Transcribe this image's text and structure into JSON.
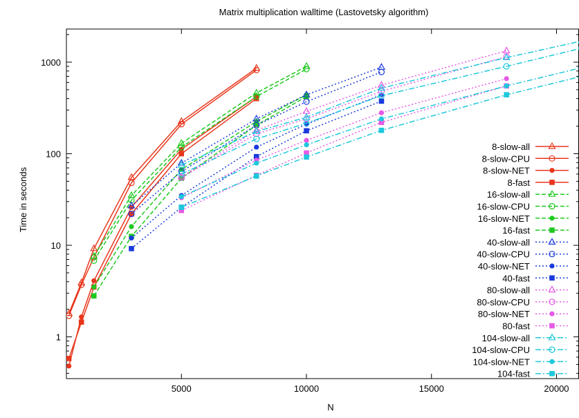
{
  "chart_data": {
    "type": "line",
    "title": "Matrix multiplication walltime (Lastovetsky algorithm)",
    "xlabel": "N",
    "ylabel": "Time in seconds",
    "xlim": [
      400,
      20900
    ],
    "ylim": [
      0.35,
      2300
    ],
    "yscale": "log",
    "x_ticks": [
      5000,
      10000,
      15000,
      20000
    ],
    "x_tick_labels": [
      "5000",
      "10000",
      "15000",
      "20000"
    ],
    "y_ticks": [
      1,
      10,
      100,
      1000
    ],
    "y_tick_labels": [
      "1",
      "10",
      "100",
      "1000"
    ],
    "grid": false,
    "legend_position": "right",
    "series": [
      {
        "name": "8-slow-all",
        "color": "#e8361c",
        "dash": "solid",
        "marker": "triangle",
        "x": [
          500,
          1000,
          1500,
          3000,
          5000,
          8000
        ],
        "y": [
          1.8,
          3.9,
          9.2,
          55,
          225,
          860
        ]
      },
      {
        "name": "8-slow-CPU",
        "color": "#e8361c",
        "dash": "solid",
        "marker": "circle-open",
        "x": [
          500,
          1000,
          1500,
          3000,
          5000,
          8000
        ],
        "y": [
          1.7,
          3.7,
          7.4,
          48,
          210,
          820
        ]
      },
      {
        "name": "8-slow-NET",
        "color": "#e8361c",
        "dash": "solid",
        "marker": "circle",
        "x": [
          500,
          1000,
          1500,
          3000,
          5000,
          8000
        ],
        "y": [
          0.48,
          1.65,
          4.1,
          26,
          112,
          420
        ]
      },
      {
        "name": "8-fast",
        "color": "#e8361c",
        "dash": "solid",
        "marker": "square",
        "x": [
          500,
          1000,
          1500,
          3000,
          5000,
          8000
        ],
        "y": [
          0.58,
          1.45,
          3.5,
          22,
          100,
          400
        ]
      },
      {
        "name": "16-slow-all",
        "color": "#1ec81e",
        "dash": "dash",
        "marker": "triangle",
        "x": [
          1500,
          3000,
          5000,
          8000,
          10000
        ],
        "y": [
          7.6,
          35,
          130,
          460,
          900
        ]
      },
      {
        "name": "16-slow-CPU",
        "color": "#1ec81e",
        "dash": "dash",
        "marker": "circle-open",
        "x": [
          1500,
          3000,
          5000,
          8000,
          10000
        ],
        "y": [
          6.8,
          31,
          118,
          420,
          840
        ]
      },
      {
        "name": "16-slow-NET",
        "color": "#1ec81e",
        "dash": "dash",
        "marker": "circle",
        "x": [
          1500,
          3000,
          5000,
          8000,
          10000
        ],
        "y": [
          3.5,
          16,
          67,
          225,
          440
        ]
      },
      {
        "name": "16-fast",
        "color": "#1ec81e",
        "dash": "dash",
        "marker": "square",
        "x": [
          1500,
          3000,
          5000,
          8000,
          10000
        ],
        "y": [
          2.8,
          12.5,
          54,
          205,
          420
        ]
      },
      {
        "name": "40-slow-all",
        "color": "#1a3adc",
        "dash": "dot",
        "marker": "triangle",
        "x": [
          3000,
          5000,
          8000,
          10000,
          13000
        ],
        "y": [
          27,
          79,
          240,
          440,
          880
        ]
      },
      {
        "name": "40-slow-CPU",
        "color": "#1a3adc",
        "dash": "dot",
        "marker": "circle-open",
        "x": [
          3000,
          5000,
          8000,
          10000,
          13000
        ],
        "y": [
          22,
          64,
          205,
          370,
          780
        ]
      },
      {
        "name": "40-slow-NET",
        "color": "#1a3adc",
        "dash": "dot",
        "marker": "circle",
        "x": [
          3000,
          5000,
          8000,
          10000,
          13000
        ],
        "y": [
          12,
          35,
          118,
          210,
          440
        ]
      },
      {
        "name": "40-fast",
        "color": "#1a3adc",
        "dash": "dot",
        "marker": "square",
        "x": [
          3000,
          5000,
          8000,
          10000,
          13000
        ],
        "y": [
          9.2,
          26,
          93,
          178,
          375
        ]
      },
      {
        "name": "80-slow-all",
        "color": "#e659e6",
        "dash": "dot",
        "marker": "triangle",
        "x": [
          5000,
          8000,
          10000,
          13000,
          18000
        ],
        "y": [
          56,
          180,
          290,
          560,
          1330
        ]
      },
      {
        "name": "80-slow-CPU",
        "color": "#e659e6",
        "dash": "dot",
        "marker": "circle-open",
        "x": [
          5000,
          8000,
          10000,
          13000,
          18000
        ],
        "y": [
          55,
          165,
          240,
          480,
          1150
        ]
      },
      {
        "name": "80-slow-NET",
        "color": "#e659e6",
        "dash": "dot",
        "marker": "circle",
        "x": [
          5000,
          8000,
          10000,
          13000,
          18000
        ],
        "y": [
          33,
          85,
          140,
          280,
          660
        ]
      },
      {
        "name": "80-fast",
        "color": "#e659e6",
        "dash": "dot",
        "marker": "square",
        "x": [
          5000,
          8000,
          10000,
          13000,
          18000
        ],
        "y": [
          24,
          58,
          102,
          220,
          550
        ]
      },
      {
        "name": "104-slow-all",
        "color": "#1ec8dc",
        "dash": "dashdot",
        "marker": "triangle",
        "x": [
          5000,
          8000,
          10000,
          13000,
          18000,
          21000
        ],
        "y": [
          75,
          175,
          250,
          520,
          1120,
          1700
        ]
      },
      {
        "name": "104-slow-CPU",
        "color": "#1ec8dc",
        "dash": "dashdot",
        "marker": "circle-open",
        "x": [
          5000,
          8000,
          10000,
          13000,
          18000,
          21000
        ],
        "y": [
          60,
          145,
          215,
          430,
          900,
          1420
        ]
      },
      {
        "name": "104-slow-NET",
        "color": "#1ec8dc",
        "dash": "dashdot",
        "marker": "circle",
        "x": [
          5000,
          8000,
          10000,
          13000,
          18000,
          21000
        ],
        "y": [
          34,
          79,
          125,
          240,
          550,
          870
        ]
      },
      {
        "name": "104-fast",
        "color": "#1ec8dc",
        "dash": "dashdot",
        "marker": "square",
        "x": [
          5000,
          8000,
          10000,
          13000,
          18000,
          21000
        ],
        "y": [
          26,
          57,
          92,
          180,
          440,
          700
        ]
      }
    ]
  }
}
